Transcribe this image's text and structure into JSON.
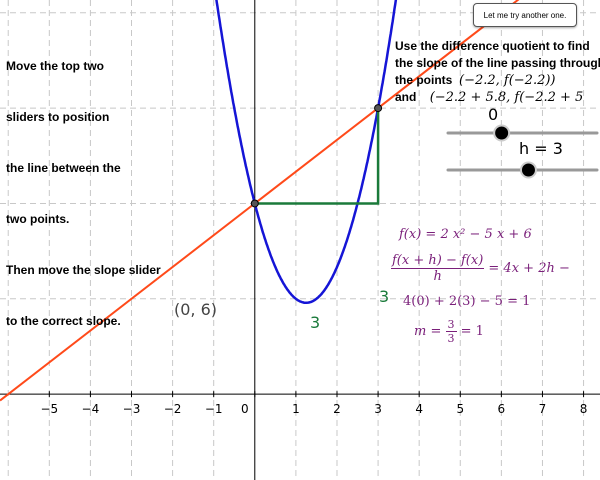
{
  "instructions": {
    "lines": [
      "Move the top two",
      "sliders to position",
      "the line between the",
      "two points.",
      "Then move the slope slider",
      "to the correct slope."
    ]
  },
  "prompt": {
    "line1": "Use the difference quotient to find",
    "line2": "the slope of the line passing through",
    "line3_text": "the points",
    "line3_math": "(−2.2, f(−2.2))",
    "line4_text": "and",
    "line4_math": "(−2.2 + 5.8, f(−2.2 + 5"
  },
  "button": {
    "label": "Let me try another one."
  },
  "sliders": [
    {
      "label": "0",
      "value": 0,
      "fraction": 0.36
    },
    {
      "label": "h = 3",
      "value": 3,
      "fraction": 0.54
    }
  ],
  "equations": {
    "f": "f(x) = 2 x² − 5 x + 6",
    "dq_num": "f(x + h) − f(x)",
    "dq_den": "h",
    "dq_rhs": "= 4x + 2h −",
    "eval": "4(0) + 2(3) − 5 = 1",
    "m_lhs": "m =",
    "m_num": "3",
    "m_den": "3",
    "m_rhs": "= 1"
  },
  "point_label": "(0, 6)",
  "run_label": "3",
  "rise_label": "3",
  "colors": {
    "parabola": "#1515d6",
    "secant": "#ff4a1a",
    "triangle": "#1a7a3a",
    "purple": "#7a1f7a",
    "grid": "#c8c8c8"
  },
  "chart_data": {
    "type": "line",
    "function": "f(x) = 2x^2 - 5x + 6",
    "xlim": [
      -6.2,
      8.4
    ],
    "ylim": [
      -2.7,
      12.4
    ],
    "xticks": [
      -5,
      -4,
      -3,
      -2,
      -1,
      0,
      1,
      2,
      3,
      4,
      5,
      6,
      7,
      8
    ],
    "grid": true,
    "series": [
      {
        "name": "",
        "kind": "parabola",
        "a": 2,
        "b": -5,
        "c": 6
      },
      {
        "name": "",
        "kind": "secant",
        "slope": 1,
        "intercept": 6
      }
    ],
    "points": [
      {
        "x": 0,
        "y": 6
      },
      {
        "x": 3,
        "y": 9
      }
    ]
  }
}
